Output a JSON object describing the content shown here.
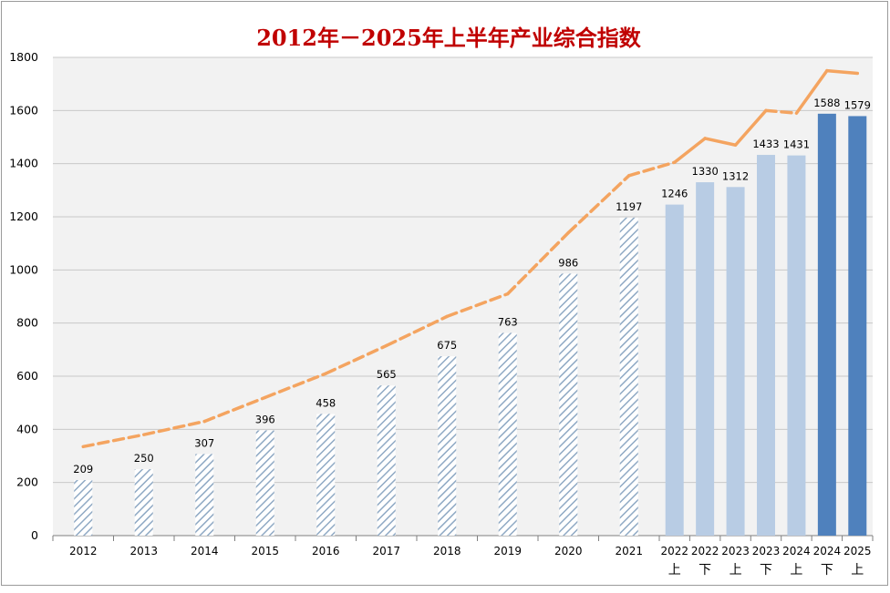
{
  "chart_data": {
    "type": "bar",
    "title": "2012年－2025年上半年产业综合指数",
    "title_color": "#c00000",
    "ylim": [
      0,
      1800
    ],
    "yticks": [
      0,
      200,
      400,
      600,
      800,
      1000,
      1200,
      1400,
      1600,
      1800
    ],
    "xlabel": "",
    "ylabel": "",
    "grid": true,
    "categories": [
      {
        "year": "2012",
        "sub": ""
      },
      {
        "year": "2013",
        "sub": ""
      },
      {
        "year": "2014",
        "sub": ""
      },
      {
        "year": "2015",
        "sub": ""
      },
      {
        "year": "2016",
        "sub": ""
      },
      {
        "year": "2017",
        "sub": ""
      },
      {
        "year": "2018",
        "sub": ""
      },
      {
        "year": "2019",
        "sub": ""
      },
      {
        "year": "2020",
        "sub": ""
      },
      {
        "year": "2021",
        "sub": ""
      },
      {
        "year": "2022",
        "sub": "上"
      },
      {
        "year": "2022",
        "sub": "下"
      },
      {
        "year": "2023",
        "sub": "上"
      },
      {
        "year": "2023",
        "sub": "下"
      },
      {
        "year": "2024",
        "sub": "上"
      },
      {
        "year": "2024",
        "sub": "下"
      },
      {
        "year": "2025",
        "sub": "上"
      }
    ],
    "values": [
      209,
      250,
      307,
      396,
      458,
      565,
      675,
      763,
      986,
      1197,
      1246,
      1330,
      1312,
      1433,
      1431,
      1588,
      1579
    ],
    "labels": [
      "209",
      "250",
      "307",
      "396",
      "458",
      "565",
      "675",
      "763",
      "986",
      "1197",
      "1246",
      "1330",
      "1312",
      "1433",
      "1431",
      "1588",
      "1579"
    ],
    "bar_styles": [
      "hatched",
      "hatched",
      "hatched",
      "hatched",
      "hatched",
      "hatched",
      "hatched",
      "hatched",
      "hatched",
      "hatched",
      "light",
      "light",
      "light",
      "light",
      "light",
      "dark",
      "dark"
    ],
    "colors": {
      "hatch": "#8fa9c4",
      "light": "#b8cce4",
      "dark": "#4f81bd",
      "trend": "#f4a460"
    },
    "trend_line": {
      "name": "trend",
      "values": [
        335,
        380,
        430,
        520,
        610,
        715,
        825,
        910,
        1140,
        1355,
        1405,
        1495,
        1470,
        1600,
        1590,
        1750,
        1740
      ],
      "dashed_until_index": 9,
      "dashed_segments_after": [
        13
      ]
    }
  }
}
